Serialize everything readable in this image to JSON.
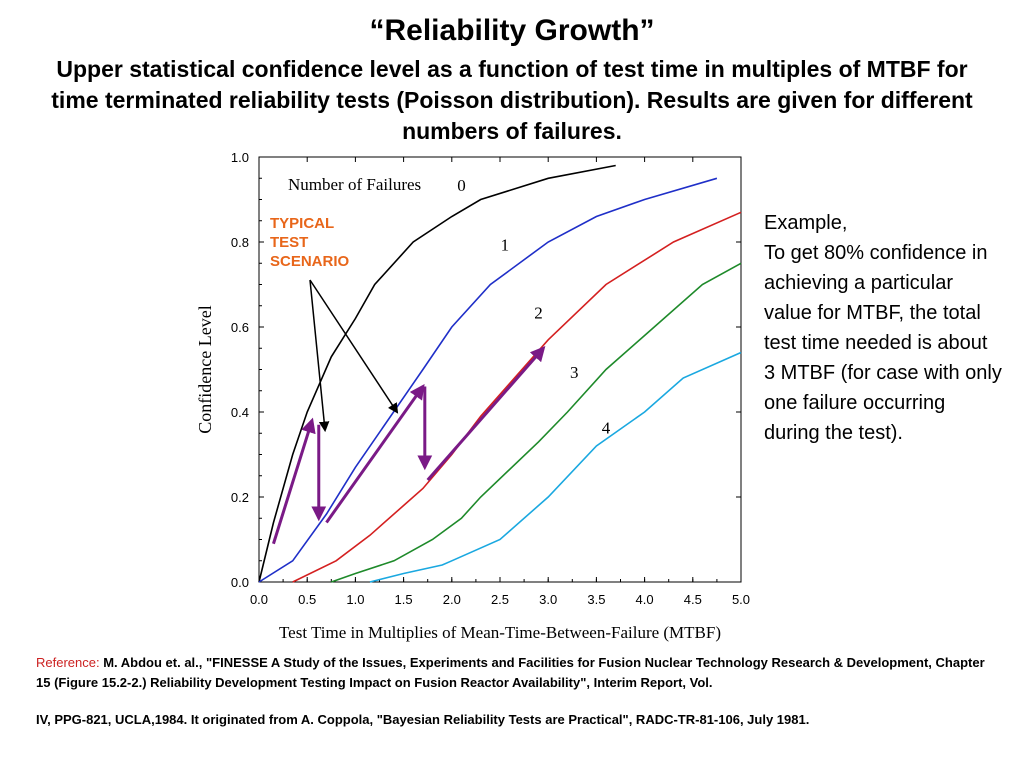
{
  "header": {
    "title": "“Reliability Growth”",
    "subtitle": "Upper  statistical confidence level as a function of test time in multiples of MTBF for time terminated reliability tests (Poisson distribution).  Results are given for different numbers of failures."
  },
  "chart_data": {
    "type": "line",
    "xlabel": "Test Time in Multiplies of Mean-Time-Between-Failure (MTBF)",
    "ylabel": "Confidence Level",
    "xlim": [
      0,
      5
    ],
    "ylim": [
      0,
      1
    ],
    "xticks": [
      "0.0",
      "0.5",
      "1.0",
      "1.5",
      "2.0",
      "2.5",
      "3.0",
      "3.5",
      "4.0",
      "4.5",
      "5.0"
    ],
    "yticks": [
      "0.0",
      "0.2",
      "0.4",
      "0.6",
      "0.8",
      "1.0"
    ],
    "legend_title": "Number of Failures",
    "series": [
      {
        "name": "0",
        "color": "#000000",
        "points": [
          [
            0.0,
            0.0
          ],
          [
            0.15,
            0.14
          ],
          [
            0.35,
            0.3
          ],
          [
            0.5,
            0.4
          ],
          [
            0.75,
            0.53
          ],
          [
            1.0,
            0.62
          ],
          [
            1.2,
            0.7
          ],
          [
            1.6,
            0.8
          ],
          [
            2.0,
            0.86
          ],
          [
            2.3,
            0.9
          ],
          [
            3.0,
            0.95
          ],
          [
            3.7,
            0.98
          ]
        ]
      },
      {
        "name": "1",
        "color": "#1f2fc8",
        "points": [
          [
            0.0,
            0.0
          ],
          [
            0.35,
            0.05
          ],
          [
            0.7,
            0.16
          ],
          [
            1.0,
            0.27
          ],
          [
            1.7,
            0.5
          ],
          [
            2.0,
            0.6
          ],
          [
            2.4,
            0.7
          ],
          [
            3.0,
            0.8
          ],
          [
            3.5,
            0.86
          ],
          [
            4.0,
            0.9
          ],
          [
            4.75,
            0.95
          ]
        ]
      },
      {
        "name": "2",
        "color": "#d42020",
        "points": [
          [
            0.35,
            0.0
          ],
          [
            0.8,
            0.05
          ],
          [
            1.15,
            0.11
          ],
          [
            1.5,
            0.18
          ],
          [
            1.7,
            0.22
          ],
          [
            2.0,
            0.3
          ],
          [
            2.3,
            0.39
          ],
          [
            3.0,
            0.57
          ],
          [
            3.6,
            0.7
          ],
          [
            4.3,
            0.8
          ],
          [
            5.0,
            0.87
          ]
        ]
      },
      {
        "name": "3",
        "color": "#1e8a2a",
        "points": [
          [
            0.75,
            0.0
          ],
          [
            1.0,
            0.02
          ],
          [
            1.4,
            0.05
          ],
          [
            1.8,
            0.1
          ],
          [
            2.1,
            0.15
          ],
          [
            2.3,
            0.2
          ],
          [
            2.9,
            0.33
          ],
          [
            3.2,
            0.4
          ],
          [
            3.6,
            0.5
          ],
          [
            4.0,
            0.58
          ],
          [
            4.6,
            0.7
          ],
          [
            5.0,
            0.75
          ]
        ]
      },
      {
        "name": "4",
        "color": "#1aa8e0",
        "points": [
          [
            1.15,
            0.0
          ],
          [
            1.5,
            0.02
          ],
          [
            1.9,
            0.04
          ],
          [
            2.0,
            0.05
          ],
          [
            2.5,
            0.1
          ],
          [
            3.0,
            0.2
          ],
          [
            3.5,
            0.32
          ],
          [
            4.0,
            0.4
          ],
          [
            4.4,
            0.48
          ],
          [
            5.0,
            0.54
          ]
        ]
      }
    ],
    "series_labels": [
      "0",
      "1",
      "2",
      "3",
      "4"
    ],
    "arrows_purple": [
      {
        "from": [
          0.15,
          0.09
        ],
        "to": [
          0.55,
          0.38
        ]
      },
      {
        "from": [
          0.62,
          0.37
        ],
        "to": [
          0.62,
          0.15
        ]
      },
      {
        "from": [
          0.7,
          0.14
        ],
        "to": [
          1.7,
          0.46
        ]
      },
      {
        "from": [
          1.72,
          0.46
        ],
        "to": [
          1.72,
          0.27
        ]
      },
      {
        "from": [
          1.75,
          0.24
        ],
        "to": [
          2.95,
          0.55
        ]
      }
    ],
    "colors": {
      "arrow_purple": "#7a1a86",
      "scenario_text": "#e8661a"
    }
  },
  "annotation": {
    "scenario_label": [
      "TYPICAL",
      "TEST",
      "SCENARIO"
    ],
    "example_text": "Example,\nTo get 80% confidence in achieving a particular value for MTBF, the total test time needed is about 3 MTBF (for case with only one failure occurring during the test)."
  },
  "reference": {
    "label": "Reference:",
    "text_line1": " M. Abdou et. al., \"FINESSE A Study of the Issues, Experiments and Facilities for Fusion Nuclear Technology Research & Development, Chapter 15 (Figure 15.2-2.) Reliability Development Testing Impact on Fusion Reactor Availability\", Interim Report, Vol.",
    "text_line2": "IV, PPG-821, UCLA,1984. It originated from A. Coppola, \"Bayesian Reliability Tests are Practical\", RADC-TR-81-106, July 1981."
  }
}
